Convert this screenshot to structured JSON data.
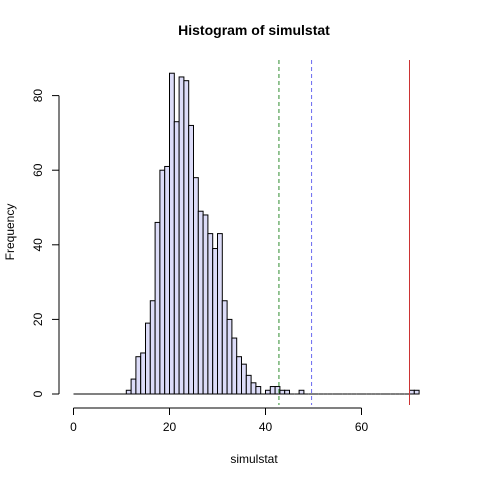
{
  "chart_data": {
    "type": "bar",
    "title": "Histogram of simulstat",
    "xlabel": "simulstat",
    "ylabel": "Frequency",
    "xlim": [
      0,
      75
    ],
    "ylim": [
      0,
      90
    ],
    "x_ticks": [
      0,
      20,
      40,
      60
    ],
    "y_ticks": [
      0,
      20,
      40,
      60,
      80
    ],
    "bin_width": 1,
    "bins_start": [
      11,
      12,
      13,
      14,
      15,
      16,
      17,
      18,
      19,
      20,
      21,
      22,
      23,
      24,
      25,
      26,
      27,
      28,
      29,
      30,
      31,
      32,
      33,
      34,
      35,
      36,
      37,
      38,
      39,
      40,
      41,
      42,
      43,
      44,
      45,
      46,
      47,
      48,
      49,
      50,
      51,
      52,
      53,
      54,
      55,
      56,
      57,
      58,
      59,
      60,
      61,
      62,
      63,
      64,
      65,
      66,
      67,
      68,
      69,
      70,
      71
    ],
    "counts": [
      1,
      4,
      10,
      11,
      19,
      25,
      46,
      60,
      61,
      86,
      73,
      85,
      84,
      72,
      58,
      49,
      48,
      43,
      39,
      43,
      25,
      20,
      15,
      10,
      8,
      5,
      3,
      2,
      0,
      1,
      2,
      2,
      1,
      1,
      0,
      0,
      1,
      0,
      0,
      0,
      0,
      0,
      0,
      0,
      0,
      0,
      0,
      0,
      0,
      0,
      0,
      0,
      0,
      0,
      0,
      0,
      0,
      0,
      0,
      1,
      1
    ],
    "reference_lines": [
      {
        "x": 42.8,
        "style": "dashed",
        "color": "#2e8b2e"
      },
      {
        "x": 49.6,
        "style": "dashed",
        "color": "#6a6af0"
      },
      {
        "x": 70.0,
        "style": "solid",
        "color": "#cc3333"
      }
    ],
    "legend": "none",
    "grid": false
  }
}
